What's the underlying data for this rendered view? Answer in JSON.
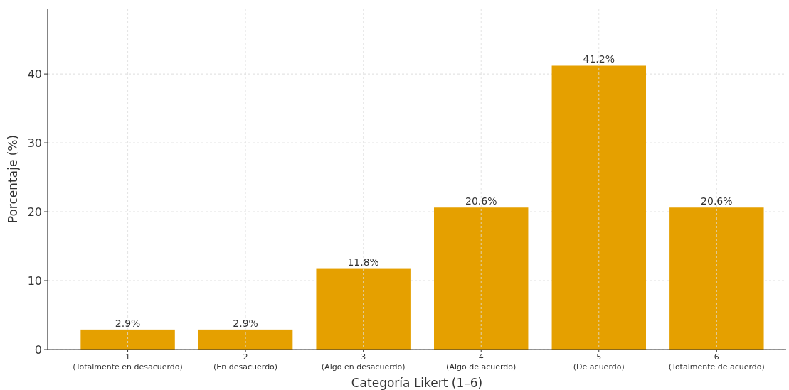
{
  "chart_data": {
    "type": "bar",
    "xlabel": "Categoría Likert (1–6)",
    "ylabel": "Porcentaje (%)",
    "categories": [
      "1\n(Totalmente en desacuerdo)",
      "2\n(En desacuerdo)",
      "3\n(Algo en desacuerdo)",
      "4\n(Algo de acuerdo)",
      "5\n(De acuerdo)",
      "6\n(Totalmente de acuerdo)"
    ],
    "values": [
      2.9,
      2.9,
      11.8,
      20.6,
      41.2,
      20.6
    ],
    "value_labels": [
      "2.9%",
      "2.9%",
      "11.8%",
      "20.6%",
      "41.2%",
      "20.6%"
    ],
    "color": "#e5a000",
    "ylim": [
      0,
      49.5
    ],
    "yticks": [
      0,
      10,
      20,
      30,
      40
    ],
    "grid": true
  }
}
